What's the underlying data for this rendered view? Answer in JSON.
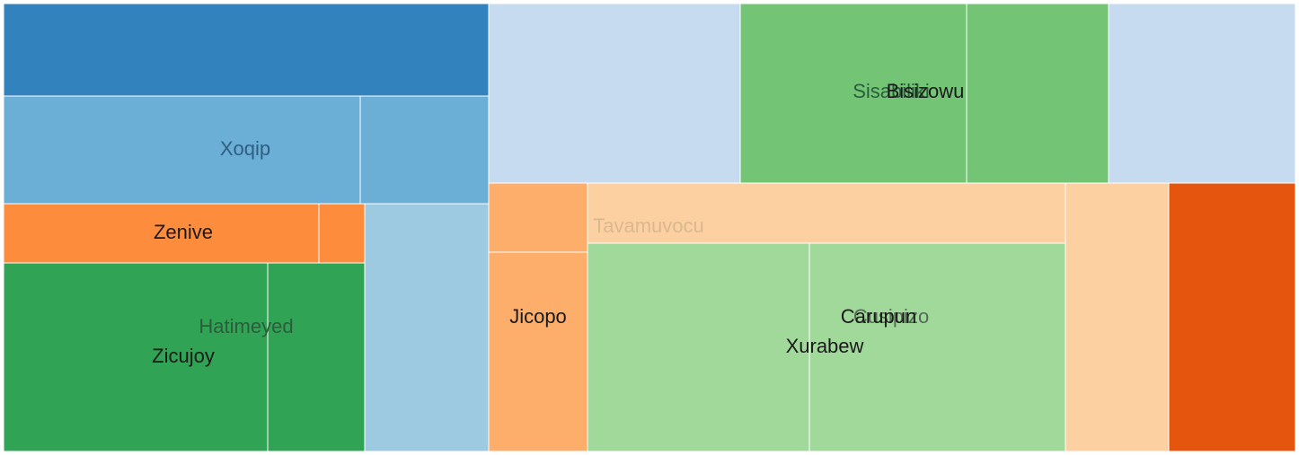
{
  "chart_data": {
    "type": "treemap",
    "title": "",
    "tiles": [
      {
        "id": "t0",
        "color": "#3182bd",
        "label": ""
      },
      {
        "id": "t1",
        "color": "#6baed6",
        "label": ""
      },
      {
        "id": "t2",
        "color": "#6baed6",
        "label": ""
      },
      {
        "id": "t3",
        "color": "#fd8d3c",
        "label": ""
      },
      {
        "id": "t4",
        "color": "#fd8d3c",
        "label": ""
      },
      {
        "id": "t5",
        "color": "#31a354",
        "label": ""
      },
      {
        "id": "t6",
        "color": "#31a354",
        "label": ""
      },
      {
        "id": "t7",
        "color": "#9ecae1",
        "label": ""
      },
      {
        "id": "t8",
        "color": "#c6dbef",
        "label": ""
      },
      {
        "id": "t9",
        "color": "#74c476",
        "label": ""
      },
      {
        "id": "t10",
        "color": "#74c476",
        "label": ""
      },
      {
        "id": "t11",
        "color": "#c6dbef",
        "label": ""
      },
      {
        "id": "t12",
        "color": "#fdae6b",
        "label": ""
      },
      {
        "id": "t13",
        "color": "#fdae6b",
        "label": ""
      },
      {
        "id": "t14",
        "color": "#fdd0a2",
        "label": ""
      },
      {
        "id": "t15",
        "color": "#a1d99b",
        "label": ""
      },
      {
        "id": "t16",
        "color": "#a1d99b",
        "label": ""
      },
      {
        "id": "t17",
        "color": "#fdd0a2",
        "label": ""
      },
      {
        "id": "t18",
        "color": "#e6550d",
        "label": ""
      }
    ],
    "group_labels": [
      {
        "id": "g0",
        "text": "Xoqip",
        "color": "#2f5f80"
      },
      {
        "id": "g1",
        "text": "Zenive",
        "color": "#1a1a1a"
      },
      {
        "id": "g2",
        "text": "Hatimeyed",
        "color": "#2a5e3a"
      },
      {
        "id": "g3",
        "text": "Zicujoy",
        "color": "#1a1a1a"
      },
      {
        "id": "g4",
        "text": "Sisabiliki",
        "color": "#2a5e3a"
      },
      {
        "id": "g5",
        "text": "Bisizowu",
        "color": "#1a1a1a"
      },
      {
        "id": "g6",
        "text": "Tavamuvocu",
        "color": "#d9b890"
      },
      {
        "id": "g7",
        "text": "Jicopo",
        "color": "#1a1a1a"
      },
      {
        "id": "g8",
        "text": "Cusipizo",
        "color": "#556b55"
      },
      {
        "id": "g9",
        "text": "Carupun",
        "color": "#1a1a1a"
      },
      {
        "id": "g10",
        "text": "Xurabew",
        "color": "#1a1a1a"
      }
    ]
  }
}
